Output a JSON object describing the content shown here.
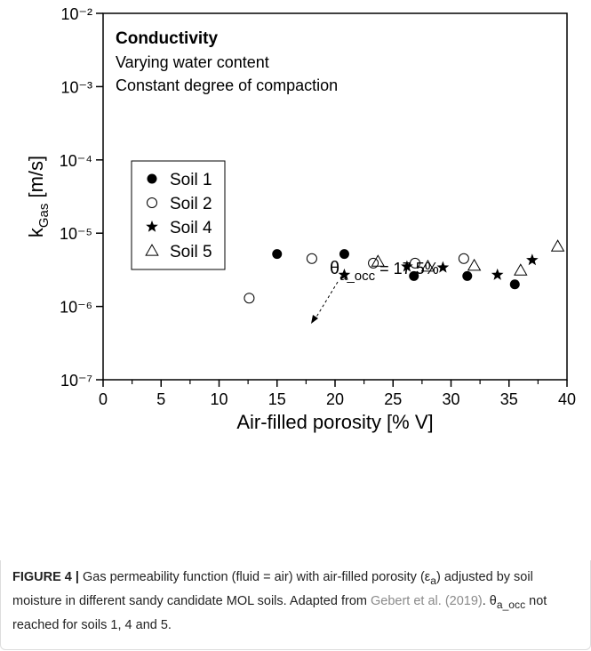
{
  "chart_data": {
    "type": "scatter",
    "annotations": [
      "Conductivity",
      "Varying water content",
      "Constant degree of compaction"
    ],
    "xlabel": "Air-filled porosity [% V]",
    "ylabel": {
      "main": "k",
      "sub": "Gas",
      "unit": " [m/s]"
    },
    "callout": {
      "main": "θ",
      "sub": "a_occ",
      "rest": " = 17.5%"
    },
    "xlim": [
      0,
      40
    ],
    "xticks": [
      0,
      5,
      10,
      15,
      20,
      25,
      30,
      35,
      40
    ],
    "xminorticks": [
      2.5,
      7.5,
      12.5,
      17.5,
      22.5,
      27.5,
      32.5,
      37.5
    ],
    "ylim": [
      1e-07,
      0.01
    ],
    "yscale": "log",
    "yticks": [
      {
        "value": 1e-07,
        "label": "10⁻⁷"
      },
      {
        "value": 1e-06,
        "label": "10⁻⁶"
      },
      {
        "value": 1e-05,
        "label": "10⁻⁵"
      },
      {
        "value": 0.0001,
        "label": "10⁻⁴"
      },
      {
        "value": 0.001,
        "label": "10⁻³"
      },
      {
        "value": 0.01,
        "label": "10⁻²"
      }
    ],
    "legend": "upper left",
    "series": [
      {
        "name": "Soil 1",
        "marker": "filled-circle",
        "color": "#000000",
        "x": [
          15,
          20.8,
          26.8,
          31.4,
          35.5
        ],
        "values": [
          5.2e-06,
          5.2e-06,
          2.6e-06,
          2.6e-06,
          2e-06
        ]
      },
      {
        "name": "Soil 2",
        "marker": "open-circle",
        "color": "#000000",
        "x": [
          12.6,
          18,
          23.3,
          26.9,
          31.1
        ],
        "values": [
          1.3e-06,
          4.5e-06,
          3.9e-06,
          3.9e-06,
          4.5e-06
        ]
      },
      {
        "name": "Soil 4",
        "marker": "star",
        "color": "#000000",
        "x": [
          20.8,
          26.2,
          29.3,
          34,
          37
        ],
        "values": [
          2.7e-06,
          3.5e-06,
          3.4e-06,
          2.7e-06,
          4.3e-06
        ]
      },
      {
        "name": "Soil 5",
        "marker": "open-triangle",
        "color": "#000000",
        "x": [
          23.7,
          28,
          32,
          36,
          39.2
        ],
        "values": [
          4.1e-06,
          3.5e-06,
          3.6e-06,
          3.1e-06,
          6.6e-06
        ]
      }
    ]
  },
  "caption": {
    "label": "FIGURE 4 |",
    "text1": " Gas permeability function (fluid = air) with air-filled porosity (ε",
    "sub1": "a",
    "text2": ") adjusted by soil moisture in different sandy candidate MOL soils. Adapted from ",
    "link": "Gebert et al. (2019)",
    "text3": ". θ",
    "sub2": "a_occ",
    "text4": " not reached for soils 1, 4 and 5."
  }
}
